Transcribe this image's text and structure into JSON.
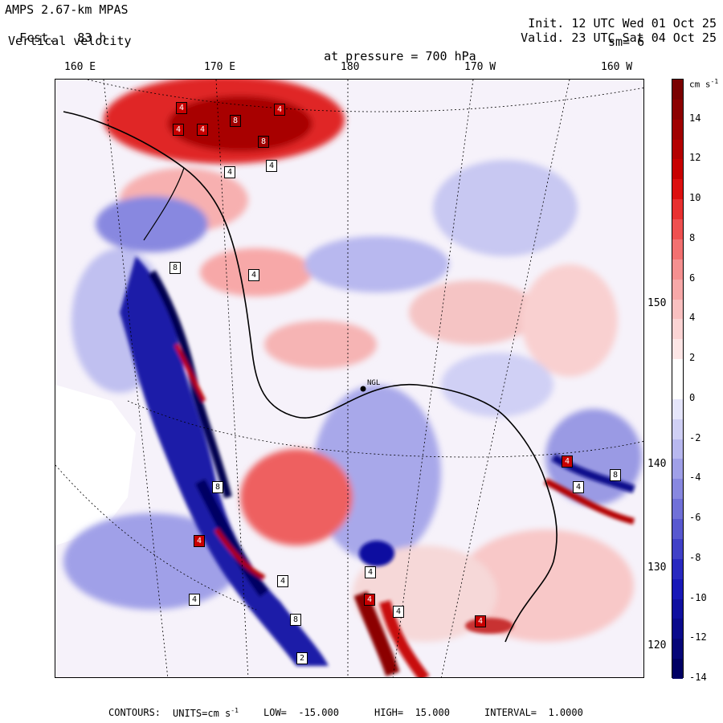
{
  "header": {
    "model": "AMPS 2.67-km MPAS",
    "fcst_label": "Fcst.",
    "fcst_value": "83 h",
    "field": "Vertical velocity",
    "pressure_label": "at pressure =",
    "pressure_value": "700 hPa",
    "init_label": "Init.",
    "init_value": "12 UTC Wed 01 Oct 25",
    "valid_label": "Valid.",
    "valid_value": "23 UTC Sat 04 Oct 25",
    "smoothing": "sm= 6"
  },
  "longitude_labels": [
    "160 E",
    "170 E",
    "180",
    "170 W",
    "160 W"
  ],
  "latitude_labels": [
    "150 W",
    "140 W",
    "130 W",
    "120 W"
  ],
  "colorbar": {
    "unit": "cm s",
    "unit_exp": "-1",
    "tick_labels": [
      "14",
      "12",
      "10",
      "8",
      "6",
      "4",
      "2",
      "0",
      "-2",
      "-4",
      "-6",
      "-8",
      "-10",
      "-12",
      "-14"
    ],
    "colors": [
      "#7a0000",
      "#8c0000",
      "#a00000",
      "#b40000",
      "#c80000",
      "#dc1010",
      "#e83030",
      "#ee5050",
      "#f27070",
      "#f59090",
      "#f7a8a8",
      "#f9c0c0",
      "#fbd4d4",
      "#fde6e6",
      "#ffffff",
      "#ffffff",
      "#e6e6fb",
      "#d0d0f5",
      "#b8b8ef",
      "#a0a0e8",
      "#8888e0",
      "#7070d8",
      "#5858d0",
      "#4040c8",
      "#2828c0",
      "#1818b8",
      "#1010a0",
      "#0a0a8c",
      "#060678",
      "#000064"
    ]
  },
  "map": {
    "station_labels": [
      "NGL"
    ],
    "contour_labels": [
      "4",
      "4",
      "4",
      "4",
      "8",
      "8",
      "4",
      "4",
      "4",
      "8",
      "8",
      "4",
      "4",
      "4",
      "4",
      "4",
      "4",
      "4",
      "4",
      "8",
      "4",
      "8",
      "2"
    ]
  },
  "footer": {
    "contours_label": "CONTOURS:",
    "units_label": "UNITS=cm s",
    "units_exp": "-1",
    "low_label": "LOW=",
    "low_value": "-15.000",
    "high_label": "HIGH=",
    "high_value": "15.000",
    "interval_label": "INTERVAL=",
    "interval_value": "1.0000"
  }
}
